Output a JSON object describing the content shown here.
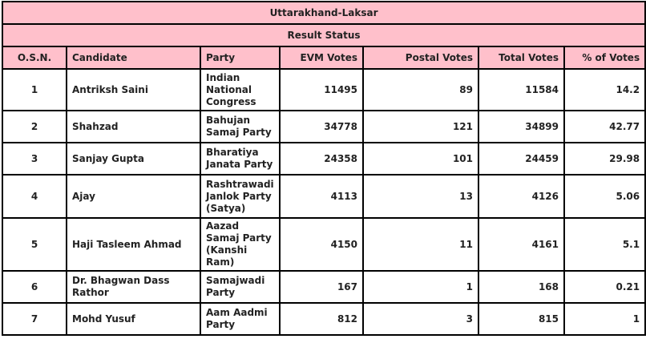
{
  "title": "Uttarakhand-Laksar",
  "subtitle": "Result Status",
  "colors": {
    "header_bg": "#ffc0cb",
    "border": "#000000"
  },
  "columns": [
    "O.S.N.",
    "Candidate",
    "Party",
    "EVM Votes",
    "Postal Votes",
    "Total Votes",
    "% of Votes"
  ],
  "rows": [
    {
      "osn": "1",
      "candidate": "Antriksh Saini",
      "party": "Indian National Congress",
      "evm": "11495",
      "postal": "89",
      "total": "11584",
      "pct": "14.2"
    },
    {
      "osn": "2",
      "candidate": "Shahzad",
      "party": "Bahujan Samaj Party",
      "evm": "34778",
      "postal": "121",
      "total": "34899",
      "pct": "42.77"
    },
    {
      "osn": "3",
      "candidate": "Sanjay Gupta",
      "party": "Bharatiya Janata Party",
      "evm": "24358",
      "postal": "101",
      "total": "24459",
      "pct": "29.98"
    },
    {
      "osn": "4",
      "candidate": "Ajay",
      "party": "Rashtrawadi Janlok Party (Satya)",
      "evm": "4113",
      "postal": "13",
      "total": "4126",
      "pct": "5.06"
    },
    {
      "osn": "5",
      "candidate": "Haji Tasleem Ahmad",
      "party": "Aazad Samaj Party (Kanshi Ram)",
      "evm": "4150",
      "postal": "11",
      "total": "4161",
      "pct": "5.1"
    },
    {
      "osn": "6",
      "candidate": "Dr. Bhagwan Dass Rathor",
      "party": "Samajwadi Party",
      "evm": "167",
      "postal": "1",
      "total": "168",
      "pct": "0.21"
    },
    {
      "osn": "7",
      "candidate": "Mohd Yusuf",
      "party": "Aam Aadmi Party",
      "evm": "812",
      "postal": "3",
      "total": "815",
      "pct": "1"
    }
  ]
}
